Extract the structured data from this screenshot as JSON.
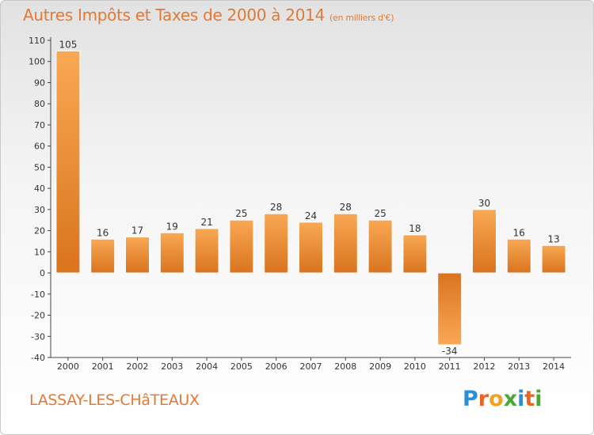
{
  "title": "Autres Impôts et Taxes de 2000 à 2014",
  "subtitle": "(en milliers d'€)",
  "commune": "LASSAY-LES-CHâTEAUX",
  "logo": {
    "letters": [
      "P",
      "r",
      "o",
      "x",
      "i",
      "t",
      "i"
    ],
    "colors": [
      "#2b8fd6",
      "#e8661f",
      "#f2a11f",
      "#4aa832",
      "#2b8fd6",
      "#e8661f",
      "#4aa832"
    ]
  },
  "colors": {
    "accent": "#e07a36",
    "bar_light": "#f9a854",
    "bar_dark": "#d9741f"
  },
  "chart_data": {
    "type": "bar",
    "title": "Autres Impôts et Taxes de 2000 à 2014",
    "subtitle": "(en milliers d'€)",
    "categories": [
      "2000",
      "2001",
      "2002",
      "2003",
      "2004",
      "2005",
      "2006",
      "2007",
      "2008",
      "2009",
      "2010",
      "2011",
      "2012",
      "2013",
      "2014"
    ],
    "values": [
      105,
      16,
      17,
      19,
      21,
      25,
      28,
      24,
      28,
      25,
      18,
      -34,
      30,
      16,
      13
    ],
    "ylim": [
      -40,
      110
    ],
    "yticks": [
      -40,
      -30,
      -20,
      -10,
      0,
      10,
      20,
      30,
      40,
      50,
      60,
      70,
      80,
      90,
      100,
      110
    ],
    "grid": false,
    "legend": "none"
  }
}
